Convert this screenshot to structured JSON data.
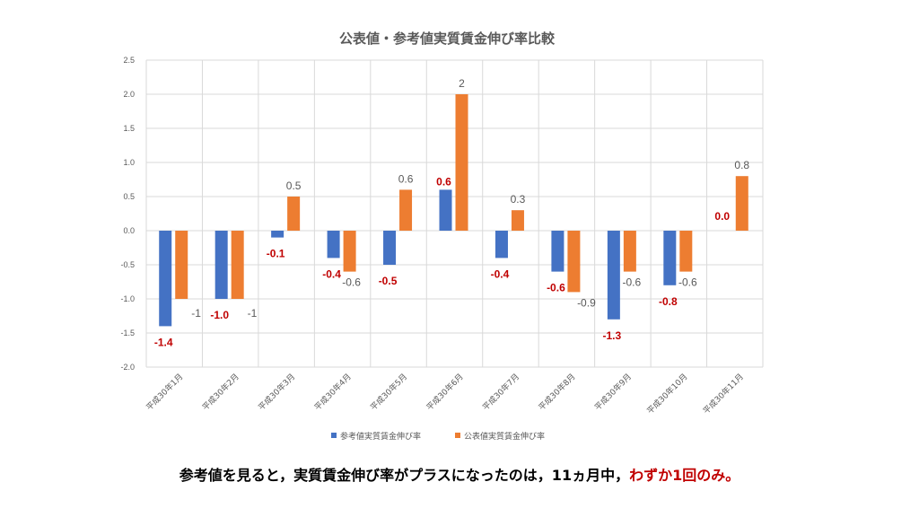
{
  "chart_data": {
    "type": "bar",
    "title": "公表値・参考値実質賃金伸び率比較",
    "categories": [
      "平成30年1月",
      "平成30年2月",
      "平成30年3月",
      "平成30年4月",
      "平成30年5月",
      "平成30年6月",
      "平成30年7月",
      "平成30年8月",
      "平成30年9月",
      "平成30年10月",
      "平成30年11月"
    ],
    "series": [
      {
        "name": "参考値実質賃金伸び率",
        "color": "#4472c4",
        "values": [
          -1.4,
          -1.0,
          -0.1,
          -0.4,
          -0.5,
          0.6,
          -0.4,
          -0.6,
          -1.3,
          -0.8,
          0.0
        ],
        "labels": [
          "-1.4",
          "-1.0",
          "-0.1",
          "-0.4",
          "-0.5",
          "0.6",
          "-0.4",
          "-0.6",
          "-1.3",
          "-0.8",
          "0.0"
        ]
      },
      {
        "name": "公表値実質賃金伸び率",
        "color": "#ed7d31",
        "values": [
          -1,
          -1,
          0.5,
          -0.6,
          0.6,
          2,
          0.3,
          -0.9,
          -0.6,
          -0.6,
          0.8
        ],
        "labels": [
          "-1",
          "-1",
          "0.5",
          "-0.6",
          "0.6",
          "2",
          "0.3",
          "-0.9",
          "-0.6",
          "-0.6",
          "0.8"
        ]
      }
    ],
    "ylim": [
      -2.0,
      2.5
    ],
    "yticks": [
      "2.5",
      "2.0",
      "1.5",
      "1.0",
      "0.5",
      "0.0",
      "-0.5",
      "-1.0",
      "-1.5",
      "-2.0"
    ],
    "grid": true,
    "legend": "bottom",
    "label_color_blue": "#c00000"
  },
  "caption": {
    "main": "参考値を見ると，実質賃金伸び率がプラスになったのは，11ヵ月中，",
    "highlight": "わずか1回のみ。"
  }
}
